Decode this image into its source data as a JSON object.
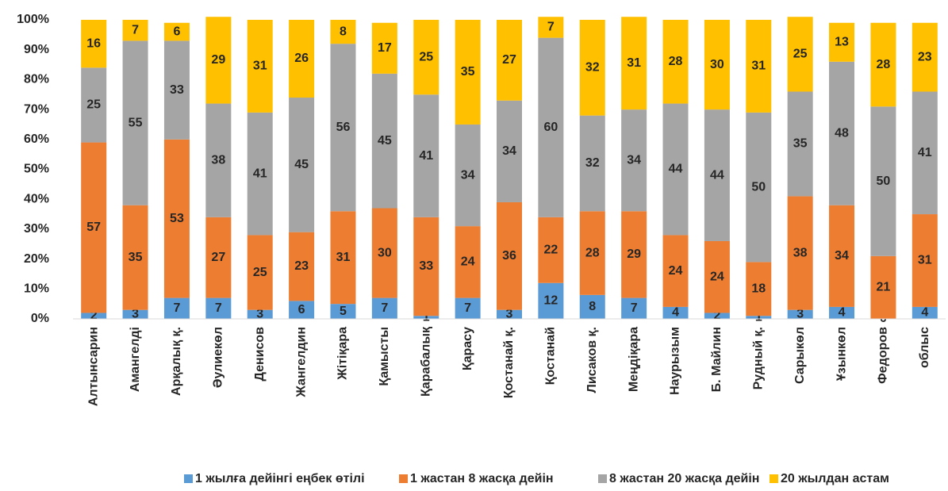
{
  "chart_data": {
    "type": "stacked_bar",
    "categories": [
      "Алтынсарин",
      "Амангелді",
      "Арқалық қ.",
      "Әулиекөл",
      "Денисов",
      "Жангелдин",
      "Жітіқара",
      "Қамысты",
      "Қарабалық",
      "Қарасу",
      "Қостанай қ.",
      "Қостанай",
      "Лисаков қ.",
      "Меңдіқара",
      "Наурызым",
      "Б. Майлин",
      "Рудный қ.",
      "Сарыкөл",
      "Ұзынкөл",
      "Федоров",
      "облыс"
    ],
    "series": [
      {
        "name": "1 жылға дейінгі еңбек өтілі",
        "color": "#5b9bd5",
        "values": [
          2,
          3,
          7,
          7,
          3,
          6,
          5,
          7,
          1,
          7,
          3,
          12,
          8,
          7,
          4,
          2,
          1,
          3,
          4,
          0,
          4
        ]
      },
      {
        "name": "1 жастан 8 жасқа дейін",
        "color": "#ed7d31",
        "values": [
          57,
          35,
          53,
          27,
          25,
          23,
          31,
          30,
          33,
          24,
          36,
          22,
          28,
          29,
          24,
          24,
          18,
          38,
          34,
          21,
          31
        ]
      },
      {
        "name": "8 жастан 20 жасқа дейін",
        "color": "#a5a5a5",
        "values": [
          25,
          55,
          33,
          38,
          41,
          45,
          56,
          45,
          41,
          34,
          34,
          60,
          32,
          34,
          44,
          44,
          50,
          35,
          48,
          50,
          41
        ]
      },
      {
        "name": "20 жылдан астам",
        "color": "#ffc000",
        "values": [
          16,
          7,
          6,
          29,
          31,
          26,
          8,
          17,
          25,
          35,
          27,
          7,
          32,
          31,
          28,
          30,
          31,
          25,
          13,
          28,
          23
        ]
      }
    ],
    "ylim": [
      0,
      100
    ],
    "yticks": [
      {
        "value": 0,
        "label": "0%"
      },
      {
        "value": 10,
        "label": "10%"
      },
      {
        "value": 20,
        "label": "20%"
      },
      {
        "value": 30,
        "label": "30%"
      },
      {
        "value": 40,
        "label": "40%"
      },
      {
        "value": 50,
        "label": "50%"
      },
      {
        "value": 60,
        "label": "60%"
      },
      {
        "value": 70,
        "label": "70%"
      },
      {
        "value": 80,
        "label": "80%"
      },
      {
        "value": 90,
        "label": "90%"
      },
      {
        "value": 100,
        "label": "100%"
      }
    ],
    "legend": "bottom"
  }
}
